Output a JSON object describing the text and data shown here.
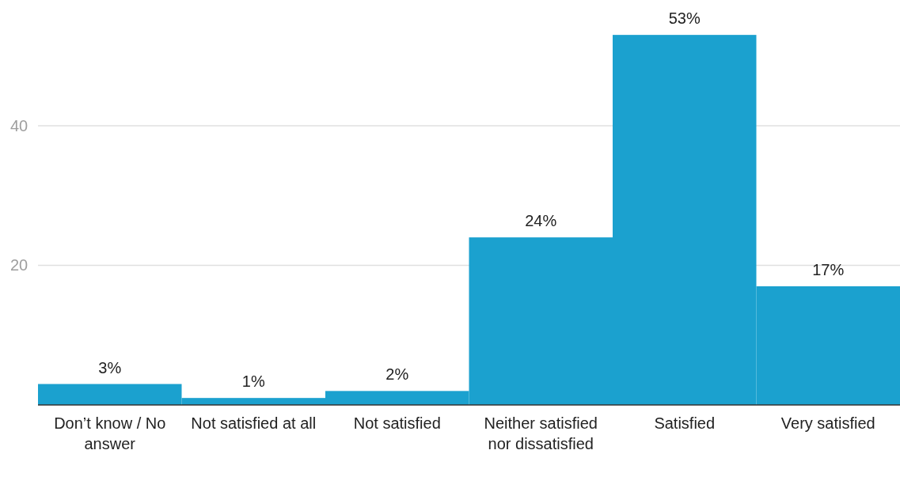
{
  "chart_data": {
    "type": "bar",
    "categories": [
      "Don’t know / No answer",
      "Not satisfied at all",
      "Not satisfied",
      "Neither satisfied nor dissatisfied",
      "Satisfied",
      "Very satisfied"
    ],
    "values": [
      3,
      1,
      2,
      24,
      53,
      17
    ],
    "value_labels": [
      "3%",
      "1%",
      "2%",
      "24%",
      "53%",
      "17%"
    ],
    "color": "#1ba1cf",
    "ylim": [
      0,
      58
    ],
    "yticks": [
      20,
      40
    ],
    "grid": "y"
  }
}
